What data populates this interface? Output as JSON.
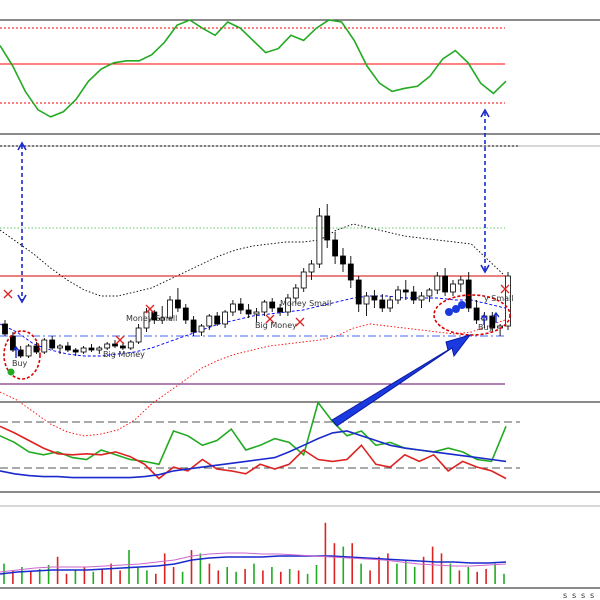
{
  "chart_data": [
    {
      "type": "line",
      "panel": "oscillator",
      "levels": [
        {
          "color": "#ff0000",
          "style": "solid"
        },
        {
          "color": "#ff0000",
          "style": "dotted"
        },
        {
          "color": "#ff0000",
          "style": "dotted"
        }
      ],
      "series": [
        {
          "color": "#22aa22",
          "values": [
            75,
            55,
            30,
            12,
            5,
            10,
            22,
            40,
            52,
            58,
            60,
            60,
            66,
            78,
            95,
            100,
            92,
            85,
            98,
            92,
            80,
            68,
            72,
            85,
            80,
            92,
            100,
            98,
            80,
            55,
            38,
            30,
            33,
            35,
            45,
            62,
            70,
            58,
            38,
            28,
            40
          ]
        }
      ]
    },
    {
      "type": "candlestick",
      "panel": "price",
      "ohlc": [
        [
          58,
          60,
          52,
          53
        ],
        [
          52,
          54,
          44,
          45
        ],
        [
          45,
          47,
          41,
          42
        ],
        [
          42,
          48,
          41,
          47
        ],
        [
          47,
          49,
          43,
          44
        ],
        [
          44,
          51,
          43,
          50
        ],
        [
          50,
          52,
          45,
          46
        ],
        [
          46,
          48,
          43,
          47
        ],
        [
          47,
          49,
          44,
          45
        ],
        [
          45,
          46,
          42,
          44
        ],
        [
          44,
          47,
          43,
          46
        ],
        [
          46,
          48,
          44,
          45
        ],
        [
          45,
          47,
          43,
          46
        ],
        [
          46,
          49,
          45,
          48
        ],
        [
          48,
          50,
          46,
          47
        ],
        [
          47,
          49,
          45,
          46
        ],
        [
          46,
          50,
          45,
          49
        ],
        [
          49,
          58,
          48,
          56
        ],
        [
          56,
          66,
          54,
          64
        ],
        [
          64,
          65,
          58,
          60
        ],
        [
          60,
          67,
          58,
          61
        ],
        [
          61,
          72,
          60,
          70
        ],
        [
          70,
          76,
          64,
          66
        ],
        [
          66,
          68,
          58,
          60
        ],
        [
          60,
          62,
          52,
          54
        ],
        [
          54,
          58,
          52,
          57
        ],
        [
          57,
          63,
          55,
          62
        ],
        [
          62,
          64,
          57,
          58
        ],
        [
          58,
          65,
          56,
          64
        ],
        [
          64,
          70,
          62,
          68
        ],
        [
          68,
          71,
          63,
          65
        ],
        [
          65,
          68,
          61,
          63
        ],
        [
          63,
          66,
          59,
          64
        ],
        [
          64,
          70,
          62,
          69
        ],
        [
          69,
          71,
          64,
          66
        ],
        [
          66,
          68,
          62,
          64
        ],
        [
          64,
          73,
          62,
          71
        ],
        [
          71,
          78,
          68,
          76
        ],
        [
          76,
          86,
          74,
          84
        ],
        [
          84,
          90,
          80,
          88
        ],
        [
          88,
          116,
          86,
          112
        ],
        [
          112,
          118,
          96,
          100
        ],
        [
          100,
          104,
          88,
          92
        ],
        [
          92,
          96,
          84,
          88
        ],
        [
          88,
          92,
          76,
          80
        ],
        [
          80,
          82,
          64,
          68
        ],
        [
          68,
          74,
          62,
          72
        ],
        [
          72,
          75,
          66,
          70
        ],
        [
          70,
          73,
          64,
          66
        ],
        [
          66,
          72,
          64,
          70
        ],
        [
          70,
          77,
          68,
          75
        ],
        [
          75,
          80,
          70,
          74
        ],
        [
          74,
          77,
          68,
          70
        ],
        [
          70,
          74,
          66,
          72
        ],
        [
          72,
          76,
          69,
          75
        ],
        [
          75,
          84,
          73,
          82
        ],
        [
          82,
          86,
          72,
          74
        ],
        [
          74,
          80,
          72,
          78
        ],
        [
          78,
          82,
          74,
          80
        ],
        [
          80,
          84,
          64,
          66
        ],
        [
          66,
          70,
          58,
          60
        ],
        [
          60,
          64,
          56,
          62
        ],
        [
          62,
          64,
          54,
          56
        ],
        [
          56,
          58,
          52,
          57
        ],
        [
          57,
          84,
          55,
          82
        ]
      ],
      "bands": [
        {
          "style": "dotted",
          "color": "#000000",
          "values": [
            105,
            99,
            93,
            86,
            80,
            75,
            72,
            72,
            74,
            76,
            80,
            84,
            88,
            92,
            95,
            97,
            98,
            99,
            99,
            100,
            105,
            108,
            106,
            104,
            102,
            101,
            100,
            99,
            98,
            90,
            82
          ]
        },
        {
          "style": "dotted",
          "color": "#ff0000",
          "values": [
            24,
            20,
            14,
            8,
            4,
            2,
            3,
            5,
            10,
            18,
            24,
            30,
            36,
            40,
            43,
            45,
            47,
            48,
            49,
            50,
            52,
            56,
            58,
            57,
            56,
            55,
            54,
            53,
            54,
            57,
            60
          ]
        },
        {
          "style": "dashed",
          "color": "#0000ff",
          "values": [
            58,
            54,
            48,
            45,
            43,
            42,
            42,
            43,
            44,
            46,
            49,
            52,
            55,
            58,
            60,
            62,
            63,
            64,
            65,
            67,
            69,
            71,
            72,
            72,
            71,
            71,
            71,
            70,
            70,
            68,
            66
          ]
        }
      ],
      "levels": [
        {
          "value": 82,
          "color": "#d40000"
        },
        {
          "value": 52,
          "color": "#4466ff",
          "style": "dash-dot"
        },
        {
          "value": 28,
          "color": "#660066"
        }
      ],
      "annotations": [
        {
          "text": "Buy"
        },
        {
          "text": "Money Small"
        },
        {
          "text": "Money Small"
        },
        {
          "text": "Big Money"
        },
        {
          "text": "Big Money"
        },
        {
          "text": "y Small"
        },
        {
          "text": "Buy"
        }
      ]
    },
    {
      "type": "line",
      "panel": "indicator",
      "levels": [
        {
          "color": "#555555",
          "style": "dashed"
        },
        {
          "color": "#555555",
          "style": "dashed"
        }
      ],
      "series": [
        {
          "color": "#22aa22",
          "values": [
            55,
            48,
            38,
            35,
            38,
            32,
            30,
            40,
            35,
            30,
            28,
            25,
            60,
            55,
            45,
            50,
            62,
            40,
            45,
            52,
            48,
            35,
            90,
            70,
            55,
            60,
            45,
            48,
            42,
            40,
            38,
            42,
            38,
            30,
            28,
            65
          ]
        },
        {
          "color": "#dd2222",
          "values": [
            65,
            58,
            50,
            42,
            36,
            35,
            36,
            35,
            38,
            33,
            25,
            10,
            22,
            18,
            30,
            20,
            18,
            15,
            25,
            20,
            25,
            40,
            30,
            28,
            30,
            45,
            25,
            22,
            35,
            28,
            35,
            18,
            28,
            22,
            18,
            10
          ]
        },
        {
          "color": "#1a2acc",
          "values": [
            18,
            15,
            13,
            12,
            12,
            11,
            11,
            11,
            11,
            11,
            12,
            14,
            18,
            20,
            22,
            24,
            26,
            28,
            30,
            32,
            38,
            45,
            52,
            58,
            60,
            55,
            50,
            45,
            42,
            40,
            38,
            36,
            34,
            32,
            30,
            28
          ]
        }
      ]
    },
    {
      "type": "bar",
      "panel": "volume",
      "colors": [
        "#22aa22",
        "#dd2222",
        "#cc66cc"
      ],
      "values": [
        30,
        20,
        25,
        18,
        22,
        28,
        40,
        15,
        20,
        25,
        18,
        22,
        30,
        20,
        50,
        25,
        20,
        15,
        45,
        25,
        18,
        50,
        45,
        30,
        20,
        25,
        18,
        22,
        30,
        20,
        25,
        18,
        22,
        20,
        15,
        28,
        90,
        60,
        55,
        60,
        30,
        20,
        40,
        45,
        30,
        35,
        25,
        40,
        55,
        45,
        30,
        20,
        25,
        18,
        22,
        30,
        15
      ],
      "series": [
        {
          "color": "#1a2acc",
          "values": [
            10,
            12,
            13,
            14,
            14,
            14,
            15,
            16,
            17,
            18,
            20,
            24,
            26,
            27,
            27,
            27,
            28,
            28,
            28,
            28,
            27,
            26,
            25,
            24,
            23,
            22,
            22,
            21,
            21,
            22
          ]
        },
        {
          "color": "#cc66cc",
          "values": [
            12,
            14,
            16,
            17,
            17,
            17,
            18,
            19,
            20,
            22,
            24,
            28,
            30,
            31,
            31,
            30,
            30,
            29,
            28,
            27,
            26,
            25,
            24,
            22,
            20,
            19,
            18,
            18,
            19,
            20
          ]
        }
      ]
    }
  ],
  "toolbar": {
    "icons": [
      "s",
      "s",
      "s",
      "s"
    ]
  }
}
